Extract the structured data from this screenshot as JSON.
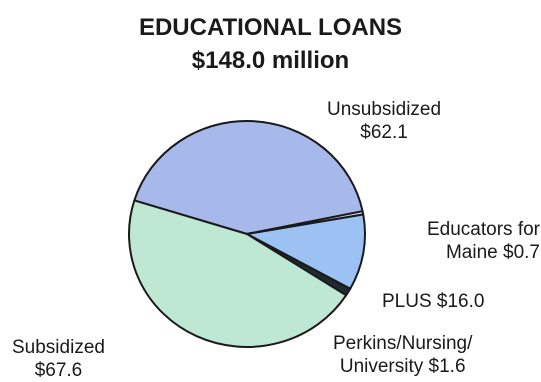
{
  "title_line1": "EDUCATIONAL LOANS",
  "title_line2": "$148.0 million",
  "chart_data": {
    "type": "pie",
    "title": "EDUCATIONAL LOANS $148.0 million",
    "slices": [
      {
        "key": "unsubsidized",
        "label_lines": [
          "Unsubsidized",
          "$62.1"
        ],
        "value": 62.1,
        "color": "#a7b9ea"
      },
      {
        "key": "educators",
        "label_lines": [
          "Educators for",
          "Maine $0.7"
        ],
        "value": 0.7,
        "color": "#c9d9f2"
      },
      {
        "key": "plus",
        "label_lines": [
          "PLUS $16.0"
        ],
        "value": 16.0,
        "color": "#9cc1f3"
      },
      {
        "key": "perkins",
        "label_lines": [
          "Perkins/Nursing/",
          "University $1.6"
        ],
        "value": 1.6,
        "color": "#1e2a30"
      },
      {
        "key": "subsidized",
        "label_lines": [
          "Subsidized",
          "$67.6"
        ],
        "value": 67.6,
        "color": "#bfe8d4"
      }
    ]
  }
}
